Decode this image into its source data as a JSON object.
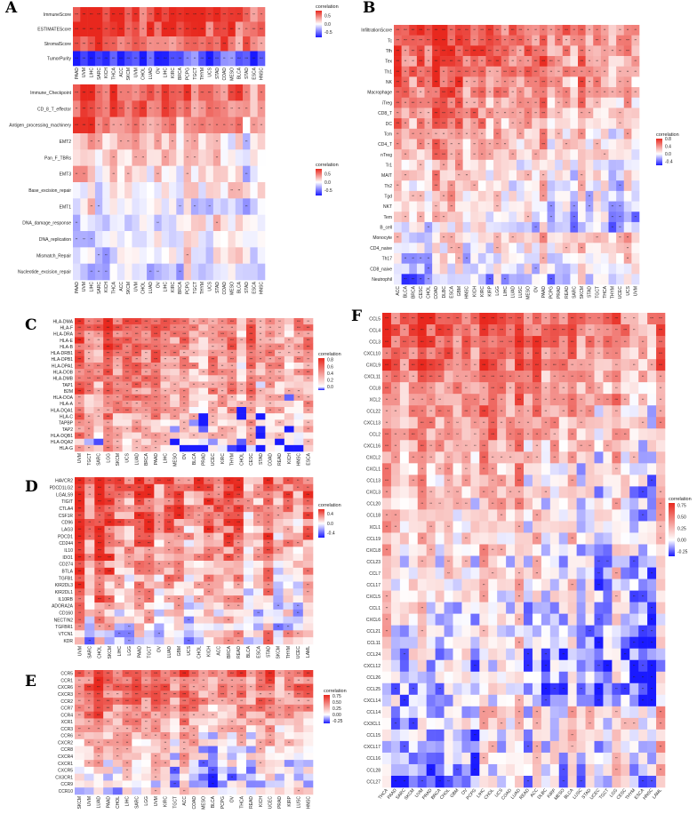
{
  "colors": {
    "low": "#1a1aff",
    "mid": "#ffffff",
    "high": "#e8281e"
  },
  "chart_data": [
    {
      "id": "A1",
      "panel_label": "A",
      "type": "heatmap",
      "rows": [
        "ImmuneScore",
        "ESTIMATEScore",
        "StromalScore",
        "TumorPurity"
      ],
      "columns": [
        "PAAD",
        "UVM",
        "LIHC",
        "SARC",
        "KICH",
        "THCA",
        "ACC",
        "SKCM",
        "UVM",
        "CHOL",
        "LUAD",
        "OV",
        "LIHC",
        "KIRC",
        "BRCA",
        "PCPG",
        "TGCT",
        "THYM",
        "UCS",
        "STAD",
        "COAD",
        "MESO",
        "BLCA",
        "STAD",
        "ESCA",
        "HNSC"
      ],
      "row_means": [
        0.85,
        0.8,
        0.65,
        -0.8
      ],
      "legend": {
        "title": "correlation",
        "ticks": [
          "0.5",
          "0.0",
          "-0.5"
        ],
        "range": [
          -0.8,
          0.8
        ]
      }
    },
    {
      "id": "A2",
      "panel_label": "",
      "type": "heatmap",
      "rows": [
        "Immune_Checkpoint",
        "CD_8_T_effector",
        "Antigen_processing_machinery",
        "EMT2",
        "Pan_F_TBRs",
        "EMT3",
        "Base_excision_repair",
        "EMT1",
        "DNA_damage_response",
        "DNA_replication",
        "Mismatch_Repair",
        "Nucleotide_excision_repair"
      ],
      "columns": [
        "PAAD",
        "UVM",
        "LIHC",
        "SARC",
        "KICH",
        "THCA",
        "ACC",
        "SKCM",
        "UVM",
        "CHOL",
        "LUAD",
        "OV",
        "LIHC",
        "KIRC",
        "BRCA",
        "PCPG",
        "TGCT",
        "THYM",
        "UCS",
        "STAD",
        "COAD",
        "MESO",
        "BLCA",
        "STAD",
        "ESCA",
        "HNSC"
      ],
      "row_means": [
        0.7,
        0.6,
        0.55,
        0.3,
        0.25,
        0.2,
        -0.1,
        0.05,
        -0.15,
        -0.2,
        -0.2,
        -0.25
      ],
      "legend": {
        "title": "correlation",
        "ticks": [
          "0.5",
          "0.0",
          "-0.5"
        ],
        "range": [
          -0.8,
          0.8
        ]
      }
    },
    {
      "id": "B",
      "panel_label": "B",
      "type": "heatmap",
      "rows": [
        "InfiltrationScore",
        "Tc",
        "Tfh",
        "Tex",
        "Th1",
        "NK",
        "Macrophage",
        "iTreg",
        "CD8_T",
        "DC",
        "Tcm",
        "CD4_T",
        "nTreg",
        "Tr1",
        "MAIT",
        "Th2",
        "Tgd",
        "NKT",
        "Tem",
        "B_cell",
        "Monocyte",
        "CD4_naive",
        "Th17",
        "CD8_naive",
        "Neutrophil"
      ],
      "columns": [
        "ACC",
        "BLCA",
        "BRCA",
        "CESC",
        "CHOL",
        "COAD",
        "DLBC",
        "ESCA",
        "GBM",
        "HNSC",
        "KICH",
        "KIRC",
        "KIRP",
        "LGG",
        "LIHC",
        "LUAD",
        "LUSC",
        "MESO",
        "OV",
        "PAAD",
        "PCPG",
        "PRAD",
        "READ",
        "SARC",
        "SKCM",
        "STAD",
        "TGCT",
        "THCA",
        "THYM",
        "UCEC",
        "UCS",
        "UVM"
      ],
      "row_means": [
        0.65,
        0.6,
        0.6,
        0.55,
        0.55,
        0.5,
        0.45,
        0.4,
        0.4,
        0.35,
        0.3,
        0.3,
        0.25,
        0.2,
        0.2,
        0.15,
        0.15,
        0.1,
        0.1,
        0.0,
        -0.05,
        -0.1,
        -0.15,
        -0.2,
        -0.3
      ],
      "legend": {
        "title": "correlation",
        "ticks": [
          "0.8",
          "0.4",
          "0.0",
          "-0.4"
        ],
        "range": [
          -0.6,
          0.8
        ]
      }
    },
    {
      "id": "C",
      "panel_label": "C",
      "type": "heatmap",
      "rows": [
        "HLA-DMA",
        "HLA-F",
        "HLA-DRA",
        "HLA-E",
        "HLA-B",
        "HLA-DRB1",
        "HLA-DPB1",
        "HLA-DPA1",
        "HLA-DOB",
        "HLA-DMB",
        "TAP1",
        "B2M",
        "HLA-DOA",
        "HLA-A",
        "HLA-DQA1",
        "HLA-C",
        "TAPBP",
        "TAP2",
        "HLA-DQB1",
        "HLA-DQA2",
        "HLA-G"
      ],
      "columns": [
        "UVM",
        "TGCT",
        "SARC",
        "LGG",
        "SKCM",
        "UCS",
        "LUAD",
        "BRCA",
        "PAAD",
        "LIHC",
        "MESO",
        "OV",
        "BLCA",
        "PRAD",
        "UCEC",
        "KIRC",
        "THYM",
        "CHOL",
        "CESC",
        "STAD",
        "COAD",
        "READ",
        "KICH",
        "HNSC",
        "ESCA"
      ],
      "row_means": [
        0.6,
        0.6,
        0.55,
        0.55,
        0.55,
        0.5,
        0.5,
        0.5,
        0.45,
        0.45,
        0.45,
        0.45,
        0.4,
        0.4,
        0.35,
        0.35,
        0.3,
        0.3,
        0.3,
        0.2,
        0.15
      ],
      "legend": {
        "title": "correlation",
        "ticks": [
          "0.8",
          "0.6",
          "0.4",
          "0.2",
          "0.0"
        ],
        "range": [
          -0.1,
          0.85
        ]
      }
    },
    {
      "id": "D",
      "panel_label": "D",
      "type": "heatmap",
      "rows": [
        "HAVCR2",
        "PDCD1LG2",
        "LGALS9",
        "TIGIT",
        "CTLA4",
        "CSF1R",
        "CD96",
        "LAG3",
        "PDCD1",
        "CD244",
        "IL10",
        "IDO1",
        "CD274",
        "BTLA",
        "TGFB1",
        "KIR2DL3",
        "KIR2DL1",
        "IL10RB",
        "ADORA2A",
        "CD160",
        "NECTIN2",
        "TGFBR1",
        "VTCN1",
        "KDR"
      ],
      "columns": [
        "UVM",
        "SARC",
        "CHOL",
        "SKCM",
        "LIHC",
        "LGG",
        "PAAD",
        "TGCT",
        "OV",
        "LUAD",
        "GBM",
        "UCS",
        "CHOL",
        "KICH",
        "ACC",
        "BRCA",
        "READ",
        "BLCA",
        "ESCA",
        "STAD",
        "SKCM",
        "THYM",
        "UCEC",
        "LAML"
      ],
      "row_means": [
        0.55,
        0.55,
        0.5,
        0.5,
        0.5,
        0.45,
        0.45,
        0.45,
        0.45,
        0.4,
        0.4,
        0.4,
        0.35,
        0.35,
        0.3,
        0.25,
        0.25,
        0.25,
        0.2,
        0.15,
        0.15,
        0.1,
        -0.1,
        -0.15
      ],
      "legend": {
        "title": "correlation",
        "ticks": [
          "0.4",
          "0.0",
          "-0.4"
        ],
        "range": [
          -0.6,
          0.6
        ]
      }
    },
    {
      "id": "E",
      "panel_label": "E",
      "type": "heatmap",
      "rows": [
        "CCR5",
        "CCR1",
        "CXCR6",
        "CXCR3",
        "CCR2",
        "CCR7",
        "CCR4",
        "XCR1",
        "CCR3",
        "CCR6",
        "CXCR2",
        "CCR8",
        "CXCR4",
        "CXCR1",
        "CXCR5",
        "CX3CR1",
        "CCR9",
        "CCR10"
      ],
      "columns": [
        "SKCM",
        "UVM",
        "LUAD",
        "PAAD",
        "CHOL",
        "LIHC",
        "SARC",
        "LGG",
        "UVM",
        "KIRC",
        "TGCT",
        "ACC",
        "COAD",
        "MESO",
        "BLCA",
        "PCPG",
        "OV",
        "THCA",
        "READ",
        "KICH",
        "UCEC",
        "PRAD",
        "KIRP",
        "LUSC",
        "HNSC"
      ],
      "row_means": [
        0.65,
        0.6,
        0.6,
        0.55,
        0.55,
        0.5,
        0.45,
        0.4,
        0.35,
        0.3,
        0.3,
        0.25,
        0.25,
        0.2,
        0.15,
        0.1,
        0.05,
        -0.05
      ],
      "legend": {
        "title": "correlation",
        "ticks": [
          "0.75",
          "0.50",
          "0.25",
          "0.00",
          "-0.25"
        ],
        "range": [
          -0.35,
          0.8
        ]
      }
    },
    {
      "id": "F",
      "panel_label": "F",
      "type": "heatmap",
      "rows": [
        "CCL5",
        "CCL4",
        "CCL3",
        "CXCL10",
        "CXCL9",
        "CXCL11",
        "CCL8",
        "XCL2",
        "CCL22",
        "CXCL13",
        "CCL2",
        "CXCL16",
        "CXCL2",
        "CXCL1",
        "CCL13",
        "CXCL3",
        "CCL20",
        "CCL18",
        "XCL1",
        "CCL19",
        "CXCL8",
        "CCL23",
        "CCL7",
        "CCL17",
        "CXCL5",
        "CCL1",
        "CXCL6",
        "CCL21",
        "CCL11",
        "CCL24",
        "CXCL12",
        "CCL26",
        "CCL25",
        "CXCL14",
        "CCL14",
        "CX3CL1",
        "CCL15",
        "CXCL17",
        "CCL16",
        "CCL28",
        "CCL27"
      ],
      "columns": [
        "THCA",
        "PAAD",
        "SARC",
        "SKCM",
        "UVM",
        "PRAD",
        "BRCA",
        "CHOL",
        "GBM",
        "OV",
        "PCPG",
        "LIHC",
        "CHOL",
        "UCS",
        "COAD",
        "LUAD",
        "READ",
        "ACC",
        "DLBC",
        "KIRP",
        "MESO",
        "BLCA",
        "LUSC",
        "STAD",
        "UCEC",
        "TGCT",
        "LGG",
        "CESC",
        "THYM",
        "ESCA",
        "HNSC",
        "LAML"
      ],
      "row_means": [
        0.7,
        0.65,
        0.65,
        0.6,
        0.6,
        0.55,
        0.5,
        0.5,
        0.45,
        0.45,
        0.45,
        0.4,
        0.35,
        0.3,
        0.3,
        0.3,
        0.3,
        0.3,
        0.25,
        0.25,
        0.25,
        0.2,
        0.2,
        0.2,
        0.15,
        0.15,
        0.15,
        0.1,
        0.1,
        0.1,
        0.05,
        0.05,
        0.0,
        0.05,
        -0.05,
        -0.05,
        -0.1,
        -0.1,
        -0.1,
        -0.15,
        -0.2
      ],
      "legend": {
        "title": "correlation",
        "ticks": [
          "0.75",
          "0.50",
          "0.25",
          "0.00",
          "-0.25"
        ],
        "range": [
          -0.35,
          0.8
        ]
      }
    }
  ]
}
